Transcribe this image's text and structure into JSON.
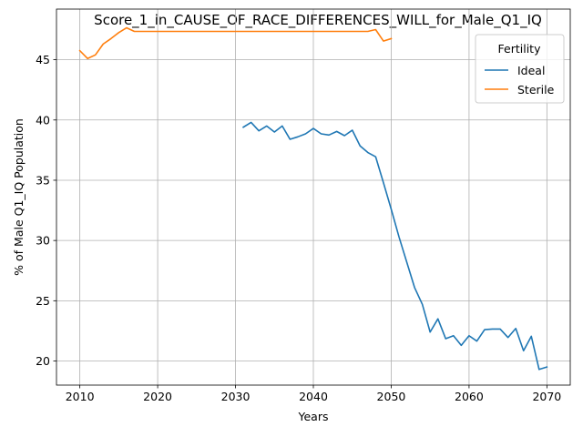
{
  "chart_data": {
    "type": "line",
    "title": "Score_1_in_CAUSE_OF_RACE_DIFFERENCES_WILL_for_Male_Q1_IQ",
    "xlabel": "Years",
    "ylabel": "% of Male Q1_IQ Population",
    "xlim": [
      2007,
      2073
    ],
    "ylim": [
      18,
      49.2
    ],
    "xticks": [
      2010,
      2020,
      2030,
      2040,
      2050,
      2060,
      2070
    ],
    "yticks": [
      20,
      25,
      30,
      35,
      40,
      45
    ],
    "grid": true,
    "legend": {
      "title": "Fertility",
      "placement": "top-right"
    },
    "series": [
      {
        "name": "Ideal",
        "color": "#1f77b4",
        "x": [
          2031,
          2032,
          2033,
          2034,
          2035,
          2036,
          2037,
          2038,
          2039,
          2040,
          2041,
          2042,
          2043,
          2044,
          2045,
          2046,
          2047,
          2048,
          2049,
          2050,
          2051,
          2052,
          2053,
          2054,
          2055,
          2056,
          2057,
          2058,
          2059,
          2060,
          2061,
          2062,
          2063,
          2064,
          2065,
          2066,
          2067,
          2068,
          2069,
          2070
        ],
        "values": [
          39.4,
          39.8,
          39.1,
          39.5,
          39.0,
          39.5,
          38.4,
          38.6,
          38.85,
          39.3,
          38.85,
          38.75,
          39.05,
          38.7,
          39.15,
          37.85,
          37.3,
          36.95,
          34.8,
          32.6,
          30.3,
          28.2,
          26.1,
          24.7,
          22.4,
          23.5,
          21.85,
          22.1,
          21.3,
          22.1,
          21.65,
          22.6,
          22.65,
          22.65,
          21.95,
          22.7,
          20.85,
          22.05,
          19.3,
          19.5
        ]
      },
      {
        "name": "Sterile",
        "color": "#ff7f0e",
        "x": [
          2010,
          2011,
          2012,
          2013,
          2014,
          2015,
          2016,
          2017,
          2018,
          2019,
          2020,
          2021,
          2022,
          2023,
          2024,
          2025,
          2026,
          2027,
          2028,
          2029,
          2030,
          2031,
          2032,
          2033,
          2034,
          2035,
          2036,
          2037,
          2038,
          2039,
          2040,
          2041,
          2042,
          2043,
          2044,
          2045,
          2046,
          2047,
          2048,
          2049,
          2050
        ],
        "values": [
          45.75,
          45.1,
          45.4,
          46.3,
          46.75,
          47.25,
          47.65,
          47.35,
          47.35,
          47.35,
          47.35,
          47.35,
          47.35,
          47.35,
          47.35,
          47.35,
          47.35,
          47.35,
          47.35,
          47.35,
          47.35,
          47.35,
          47.35,
          47.35,
          47.35,
          47.35,
          47.35,
          47.35,
          47.35,
          47.35,
          47.35,
          47.35,
          47.35,
          47.35,
          47.35,
          47.35,
          47.35,
          47.35,
          47.5,
          46.55,
          46.75
        ]
      }
    ]
  }
}
